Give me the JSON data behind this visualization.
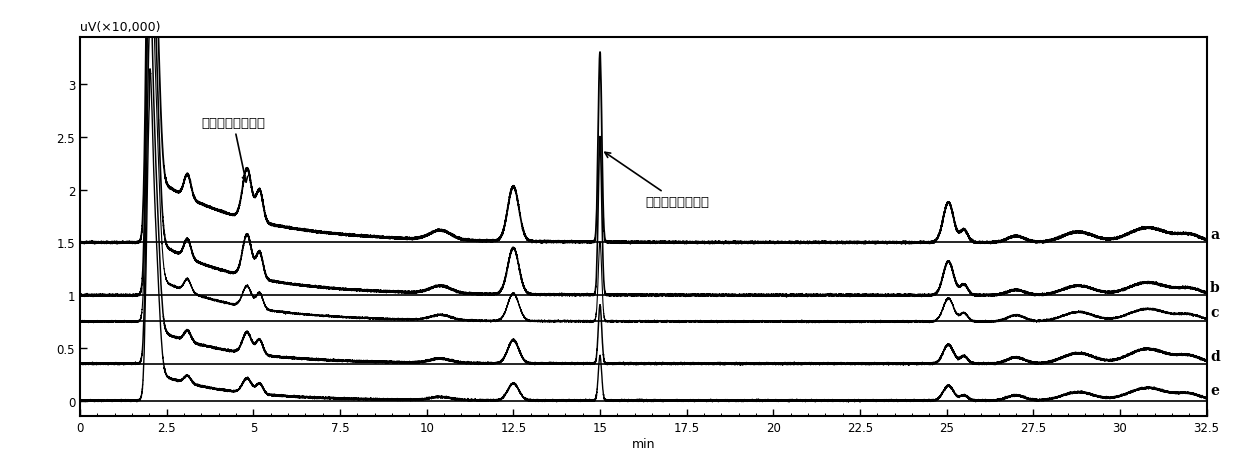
{
  "ylabel": "uV(×10,000)",
  "xlabel": "min",
  "xlim": [
    0.0,
    32.5
  ],
  "ylim": [
    -0.15,
    3.45
  ],
  "xticks": [
    0.0,
    2.5,
    5.0,
    7.5,
    10.0,
    12.5,
    15.0,
    17.5,
    20.0,
    22.5,
    25.0,
    27.5,
    30.0,
    32.5
  ],
  "yticks": [
    0.0,
    0.5,
    1.0,
    1.5,
    2.0,
    2.5,
    3.0
  ],
  "offsets": [
    1.5,
    1.0,
    0.75,
    0.35,
    0.0
  ],
  "trace_labels": [
    "a",
    "b",
    "c",
    "d",
    "e"
  ],
  "annotation1": "甲磺酸甲酱衍生物",
  "annotation2": "甲磺酸乙酱衍生物",
  "line_color": "#000000",
  "background_color": "#ffffff"
}
